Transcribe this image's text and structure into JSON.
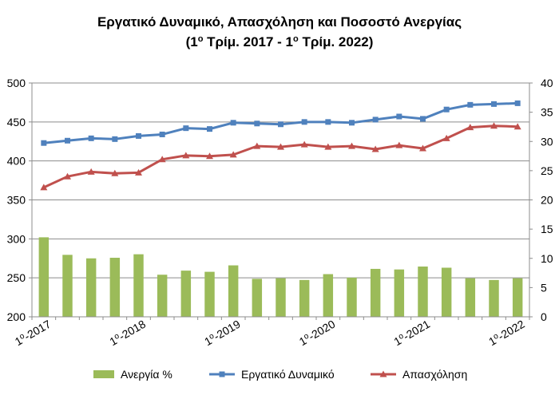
{
  "chart_data": {
    "type": "bar+line",
    "title_line1": "Εργατικό Δυναμικό, Απασχόληση και Ποσοστό Ανεργίας",
    "title_line2_parts": [
      "(1",
      "ο",
      " Τρίμ. 2017 - 1",
      "ο",
      " Τρίμ. 2022)"
    ],
    "x_tick_labels": [
      {
        "index": 0,
        "num": "1",
        "sup": "ο",
        "rest": "-2017"
      },
      {
        "index": 4,
        "num": "1",
        "sup": "ο",
        "rest": "-2018"
      },
      {
        "index": 8,
        "num": "1",
        "sup": "ο",
        "rest": "-2019"
      },
      {
        "index": 12,
        "num": "1",
        "sup": "ο",
        "rest": "-2020"
      },
      {
        "index": 16,
        "num": "1",
        "sup": "ο",
        "rest": "-2021"
      },
      {
        "index": 20,
        "num": "1",
        "sup": "ο",
        "rest": "-2022"
      }
    ],
    "n_points": 21,
    "left_axis": {
      "min": 200,
      "max": 500,
      "step": 50,
      "ticks": [
        "200",
        "250",
        "300",
        "350",
        "400",
        "450",
        "500"
      ]
    },
    "right_axis": {
      "min": 0,
      "max": 40,
      "step": 5,
      "ticks": [
        "0",
        "5",
        "10",
        "15",
        "20",
        "25",
        "30",
        "35",
        "40"
      ]
    },
    "gridlines": true,
    "series": [
      {
        "name": "Ανεργία %",
        "kind": "bar",
        "axis": "right",
        "color": "#9BBB59",
        "values": [
          13.6,
          10.6,
          10.0,
          10.1,
          10.7,
          7.2,
          7.9,
          7.7,
          8.8,
          6.5,
          6.6,
          6.3,
          7.3,
          6.7,
          8.2,
          8.1,
          8.6,
          8.4,
          6.6,
          6.3,
          6.6
        ]
      },
      {
        "name": "Εργατικό Δυναμικό",
        "kind": "line",
        "axis": "left",
        "color": "#4F81BD",
        "marker": "square",
        "values": [
          423,
          426,
          429,
          428,
          432,
          434,
          442,
          441,
          449,
          448,
          447,
          450,
          450,
          449,
          453,
          457,
          454,
          466,
          472,
          473,
          474
        ]
      },
      {
        "name": "Απασχόληση",
        "kind": "line",
        "axis": "left",
        "color": "#C0504D",
        "marker": "triangle",
        "values": [
          366,
          380,
          386,
          384,
          385,
          402,
          407,
          406,
          408,
          419,
          418,
          421,
          418,
          419,
          415,
          420,
          416,
          429,
          443,
          445,
          444
        ]
      }
    ],
    "legend_position": "bottom"
  }
}
